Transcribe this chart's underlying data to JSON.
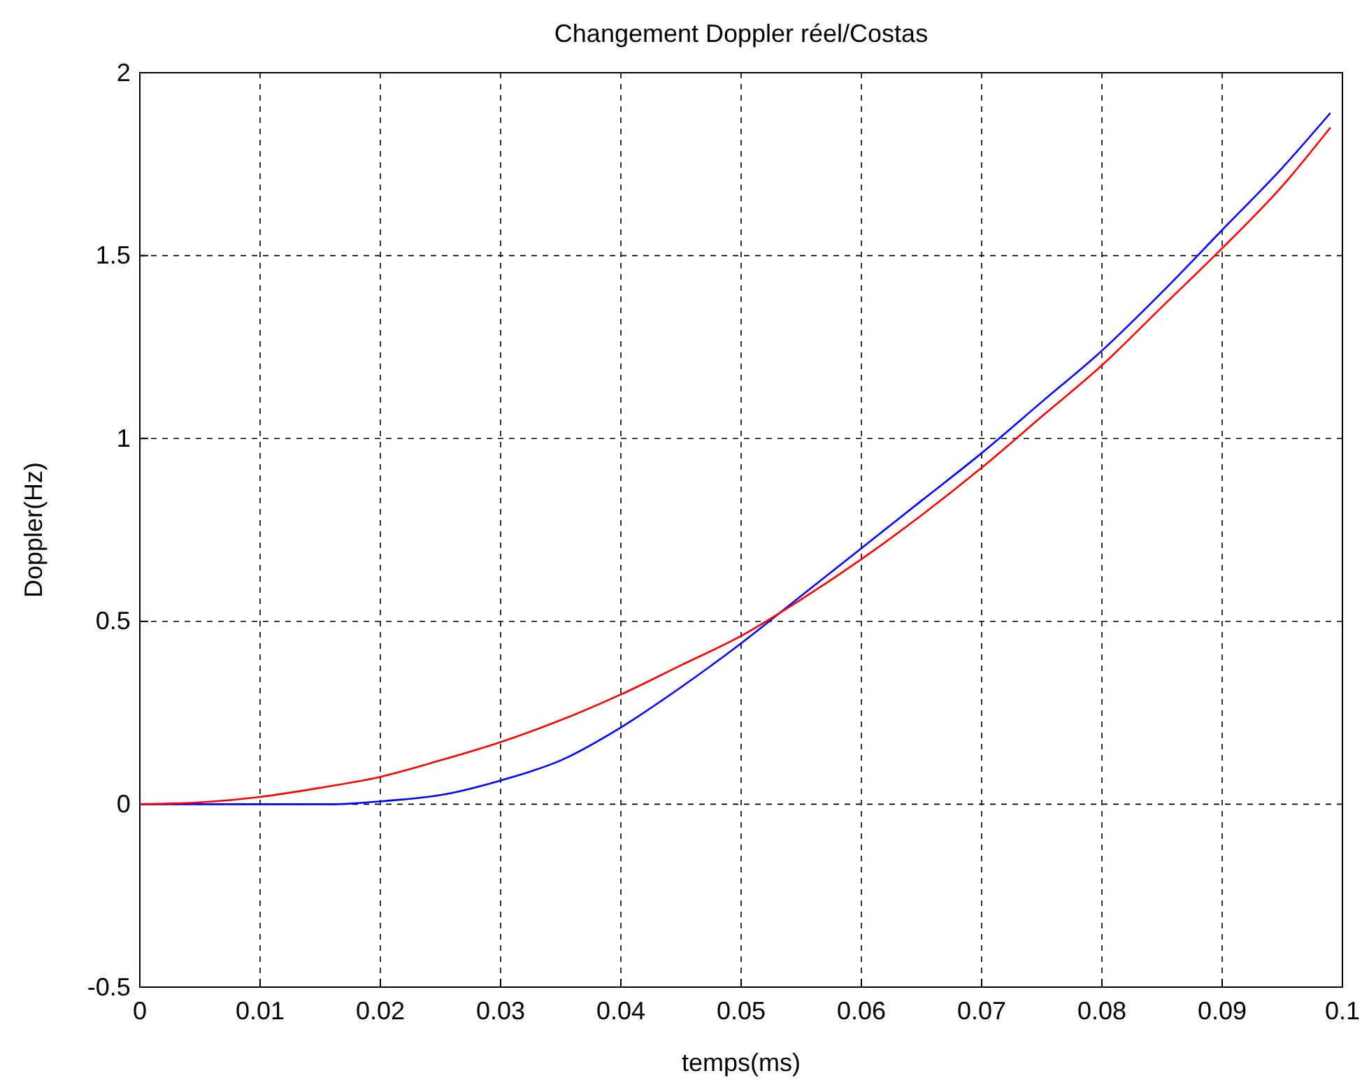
{
  "chart_data": {
    "type": "line",
    "title": "Changement Doppler réel/Costas",
    "xlabel": "temps(ms)",
    "ylabel": "Doppler(Hz)",
    "xlim": [
      0,
      0.1
    ],
    "ylim": [
      -0.5,
      2
    ],
    "xticks": [
      0,
      0.01,
      0.02,
      0.03,
      0.04,
      0.05,
      0.06,
      0.07,
      0.08,
      0.09,
      0.1
    ],
    "yticks": [
      -0.5,
      0,
      0.5,
      1,
      1.5,
      2
    ],
    "grid": true,
    "line_style": "solid",
    "series": [
      {
        "color": "#0000ff",
        "x": [
          0,
          0.016,
          0.02,
          0.025,
          0.03,
          0.035,
          0.04,
          0.045,
          0.05,
          0.055,
          0.06,
          0.065,
          0.07,
          0.075,
          0.08,
          0.085,
          0.09,
          0.095,
          0.099
        ],
        "values": [
          0,
          0,
          0.008,
          0.025,
          0.065,
          0.12,
          0.21,
          0.32,
          0.44,
          0.57,
          0.7,
          0.83,
          0.96,
          1.1,
          1.24,
          1.4,
          1.57,
          1.74,
          1.89
        ]
      },
      {
        "color": "#ff0000",
        "x": [
          0,
          0.005,
          0.01,
          0.015,
          0.02,
          0.025,
          0.03,
          0.035,
          0.04,
          0.045,
          0.05,
          0.055,
          0.06,
          0.065,
          0.07,
          0.075,
          0.08,
          0.085,
          0.09,
          0.095,
          0.099
        ],
        "values": [
          0,
          0.005,
          0.02,
          0.045,
          0.075,
          0.12,
          0.17,
          0.23,
          0.3,
          0.38,
          0.46,
          0.56,
          0.67,
          0.79,
          0.92,
          1.06,
          1.2,
          1.36,
          1.52,
          1.69,
          1.85
        ]
      }
    ]
  }
}
